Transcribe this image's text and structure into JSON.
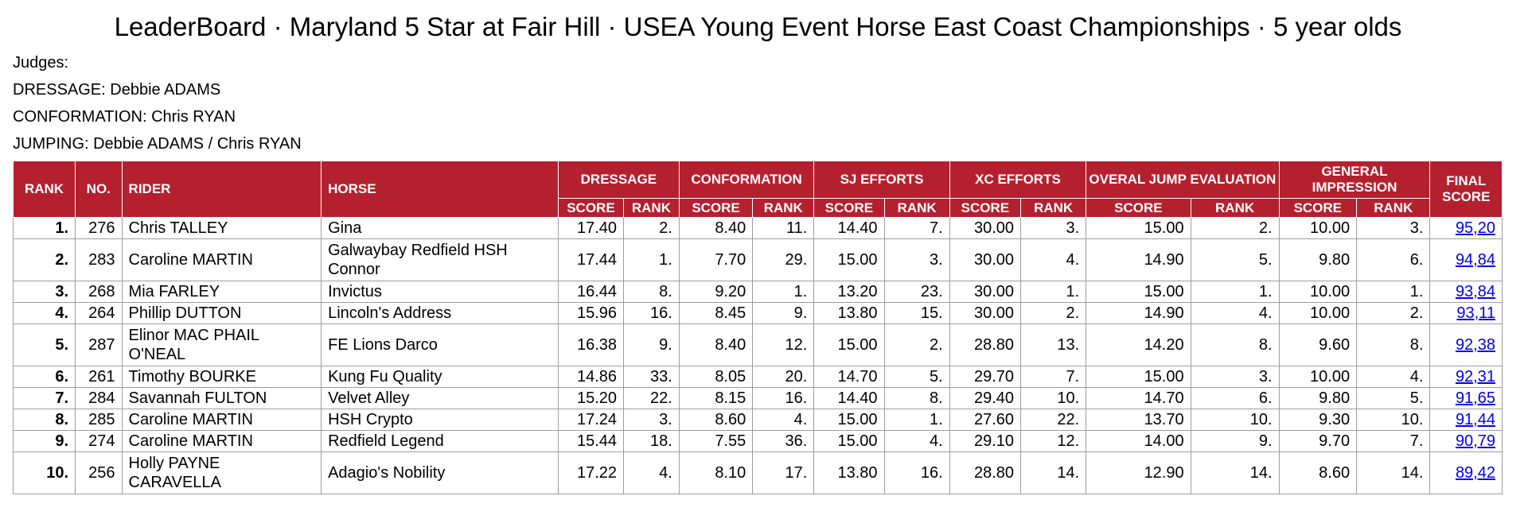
{
  "title": "LeaderBoard · Maryland 5 Star at Fair Hill · USEA Young Event Horse East Coast Championships · 5 year olds",
  "judges": {
    "heading": "Judges:",
    "dressage": "DRESSAGE: Debbie ADAMS",
    "conformation": "CONFORMATION: Chris RYAN",
    "jumping": "JUMPING: Debbie ADAMS / Chris RYAN"
  },
  "headers": {
    "rank": "RANK",
    "no": "NO.",
    "rider": "RIDER",
    "horse": "HORSE",
    "dressage": "DRESSAGE",
    "conformation": "CONFORMATION",
    "sj": "SJ EFFORTS",
    "xc": "XC EFFORTS",
    "overall": "OVERAL JUMP EVALUATION",
    "general": "GENERAL IMPRESSION",
    "final": "FINAL SCORE",
    "score": "SCORE",
    "rank_sub": "RANK"
  },
  "rows": [
    {
      "rank": "1.",
      "no": "276",
      "rider": "Chris TALLEY",
      "horse": "Gina",
      "d_s": "17.40",
      "d_r": "2.",
      "c_s": "8.40",
      "c_r": "11.",
      "sj_s": "14.40",
      "sj_r": "7.",
      "xc_s": "30.00",
      "xc_r": "3.",
      "oj_s": "15.00",
      "oj_r": "2.",
      "gi_s": "10.00",
      "gi_r": "3.",
      "final": "95,20"
    },
    {
      "rank": "2.",
      "no": "283",
      "rider": "Caroline MARTIN",
      "horse": "Galwaybay Redfield HSH Connor",
      "d_s": "17.44",
      "d_r": "1.",
      "c_s": "7.70",
      "c_r": "29.",
      "sj_s": "15.00",
      "sj_r": "3.",
      "xc_s": "30.00",
      "xc_r": "4.",
      "oj_s": "14.90",
      "oj_r": "5.",
      "gi_s": "9.80",
      "gi_r": "6.",
      "final": "94,84"
    },
    {
      "rank": "3.",
      "no": "268",
      "rider": "Mia FARLEY",
      "horse": "Invictus",
      "d_s": "16.44",
      "d_r": "8.",
      "c_s": "9.20",
      "c_r": "1.",
      "sj_s": "13.20",
      "sj_r": "23.",
      "xc_s": "30.00",
      "xc_r": "1.",
      "oj_s": "15.00",
      "oj_r": "1.",
      "gi_s": "10.00",
      "gi_r": "1.",
      "final": "93,84"
    },
    {
      "rank": "4.",
      "no": "264",
      "rider": "Phillip DUTTON",
      "horse": "Lincoln's Address",
      "d_s": "15.96",
      "d_r": "16.",
      "c_s": "8.45",
      "c_r": "9.",
      "sj_s": "13.80",
      "sj_r": "15.",
      "xc_s": "30.00",
      "xc_r": "2.",
      "oj_s": "14.90",
      "oj_r": "4.",
      "gi_s": "10.00",
      "gi_r": "2.",
      "final": "93,11"
    },
    {
      "rank": "5.",
      "no": "287",
      "rider": "Elinor MAC PHAIL O'NEAL",
      "horse": "FE Lions Darco",
      "d_s": "16.38",
      "d_r": "9.",
      "c_s": "8.40",
      "c_r": "12.",
      "sj_s": "15.00",
      "sj_r": "2.",
      "xc_s": "28.80",
      "xc_r": "13.",
      "oj_s": "14.20",
      "oj_r": "8.",
      "gi_s": "9.60",
      "gi_r": "8.",
      "final": "92,38"
    },
    {
      "rank": "6.",
      "no": "261",
      "rider": "Timothy BOURKE",
      "horse": "Kung Fu Quality",
      "d_s": "14.86",
      "d_r": "33.",
      "c_s": "8.05",
      "c_r": "20.",
      "sj_s": "14.70",
      "sj_r": "5.",
      "xc_s": "29.70",
      "xc_r": "7.",
      "oj_s": "15.00",
      "oj_r": "3.",
      "gi_s": "10.00",
      "gi_r": "4.",
      "final": "92,31"
    },
    {
      "rank": "7.",
      "no": "284",
      "rider": "Savannah FULTON",
      "horse": "Velvet Alley",
      "d_s": "15.20",
      "d_r": "22.",
      "c_s": "8.15",
      "c_r": "16.",
      "sj_s": "14.40",
      "sj_r": "8.",
      "xc_s": "29.40",
      "xc_r": "10.",
      "oj_s": "14.70",
      "oj_r": "6.",
      "gi_s": "9.80",
      "gi_r": "5.",
      "final": "91,65"
    },
    {
      "rank": "8.",
      "no": "285",
      "rider": "Caroline MARTIN",
      "horse": "HSH Crypto",
      "d_s": "17.24",
      "d_r": "3.",
      "c_s": "8.60",
      "c_r": "4.",
      "sj_s": "15.00",
      "sj_r": "1.",
      "xc_s": "27.60",
      "xc_r": "22.",
      "oj_s": "13.70",
      "oj_r": "10.",
      "gi_s": "9.30",
      "gi_r": "10.",
      "final": "91,44"
    },
    {
      "rank": "9.",
      "no": "274",
      "rider": "Caroline MARTIN",
      "horse": "Redfield Legend",
      "d_s": "15.44",
      "d_r": "18.",
      "c_s": "7.55",
      "c_r": "36.",
      "sj_s": "15.00",
      "sj_r": "4.",
      "xc_s": "29.10",
      "xc_r": "12.",
      "oj_s": "14.00",
      "oj_r": "9.",
      "gi_s": "9.70",
      "gi_r": "7.",
      "final": "90,79"
    },
    {
      "rank": "10.",
      "no": "256",
      "rider": "Holly PAYNE CARAVELLA",
      "horse": "Adagio's Nobility",
      "d_s": "17.22",
      "d_r": "4.",
      "c_s": "8.10",
      "c_r": "17.",
      "sj_s": "13.80",
      "sj_r": "16.",
      "xc_s": "28.80",
      "xc_r": "14.",
      "oj_s": "12.90",
      "oj_r": "14.",
      "gi_s": "8.60",
      "gi_r": "14.",
      "final": "89,42"
    }
  ]
}
